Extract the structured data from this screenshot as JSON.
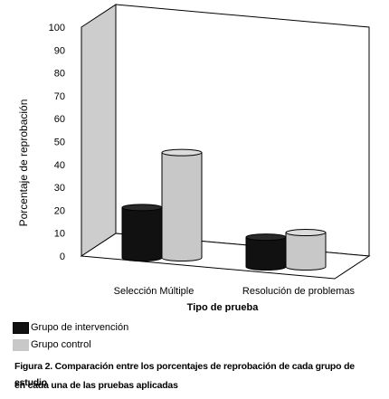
{
  "chart_data": {
    "type": "bar",
    "style": "3d-cylinder",
    "categories": [
      "Selección Múltiple",
      "Resolución de problemas"
    ],
    "series": [
      {
        "name": "Grupo de intervención",
        "values": [
          22,
          13
        ]
      },
      {
        "name": "Grupo control",
        "values": [
          46,
          15
        ]
      }
    ],
    "xlabel": "Tipo de prueba",
    "ylabel": "Porcentaje de reprobación",
    "ylim": [
      0,
      100
    ],
    "yticks": [
      "0",
      "10",
      "20",
      "30",
      "40",
      "50",
      "60",
      "70",
      "80",
      "90",
      "100"
    ],
    "grid": false,
    "legend_position": "bottom-left",
    "colors": {
      "Grupo de intervención": "#111111",
      "Grupo control": "#c8c8c8",
      "back_wall": "#c8c8c8"
    }
  },
  "legend": {
    "intervention": "Grupo de intervención",
    "control": "Grupo control"
  },
  "caption": {
    "line1": "Figura 2. Comparación entre los porcentajes de reprobación de cada grupo de estudio",
    "line2": "en cada una de las pruebas aplicadas"
  }
}
